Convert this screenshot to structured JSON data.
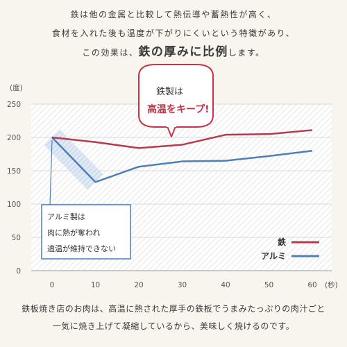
{
  "intro": {
    "line1": "鉄は他の金属と比較して熱伝導や蓄熱性が高く、",
    "line2": "食材を入れた後も温度が下がりにくいという特徴があり、",
    "line3_a": "この効果は、",
    "line3_b": "鉄の厚みに比例",
    "line3_c": "します。"
  },
  "callout_iron": {
    "line1": "鉄製は",
    "line2": "高温をキープ!"
  },
  "callout_alu": {
    "line1": "アルミ製は",
    "line2": "肉に熱が奪われ",
    "line3": "適温が維持できない"
  },
  "caption": {
    "line1": "鉄板焼き店のお肉は、高温に熱された厚手の鉄板でうまみたっぷりの肉汁ごと",
    "line2": "一気に焼き上げて凝縮しているから、美味しく焼けるのです。"
  },
  "colors": {
    "iron": "#b53a4d",
    "aluminum": "#4f7fb8",
    "emphasis": "#c8334a"
  },
  "chart_data": {
    "type": "line",
    "x": [
      0,
      10,
      20,
      30,
      40,
      50,
      60
    ],
    "xlabel": "(秒)",
    "ylabel": "(度)",
    "xlim": [
      0,
      60
    ],
    "ylim": [
      0,
      250
    ],
    "xticks": [
      "0",
      "10",
      "20",
      "30",
      "40",
      "50",
      "60"
    ],
    "yticks": [
      "0",
      "50",
      "100",
      "150",
      "200",
      "250"
    ],
    "grid": true,
    "legend_position": "bottom-right",
    "series": [
      {
        "name": "鉄",
        "color": "#b53a4d",
        "values": [
          200,
          193,
          184,
          189,
          204,
          205,
          211
        ]
      },
      {
        "name": "アルミ",
        "color": "#4f7fb8",
        "values": [
          200,
          133,
          156,
          164,
          165,
          172,
          180
        ]
      }
    ]
  }
}
